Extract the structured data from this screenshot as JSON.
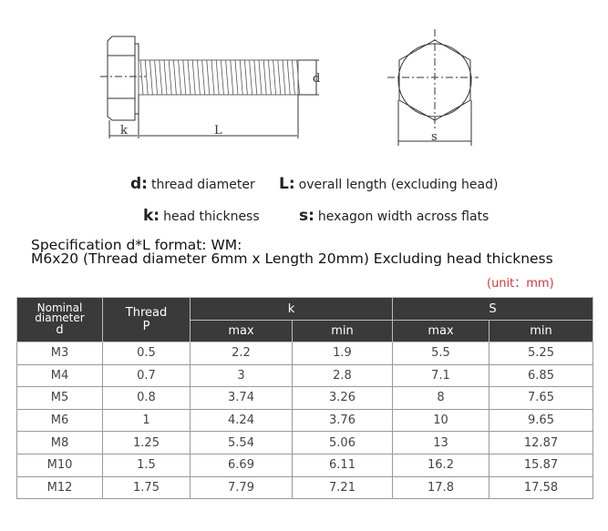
{
  "diagram": {
    "labels": {
      "k": "k",
      "L": "L",
      "d": "d",
      "s": "s"
    }
  },
  "legend": [
    {
      "symbol": "d:",
      "text": "thread diameter"
    },
    {
      "symbol": "L:",
      "text": "overall length (excluding head)"
    },
    {
      "symbol": "k:",
      "text": "head thickness"
    },
    {
      "symbol": "s:",
      "text": "hexagon width across flats"
    }
  ],
  "spec": {
    "line1": "Specification d*L format: WM:",
    "line2": "M6x20 (Thread diameter 6mm x Length 20mm) Excluding head thickness",
    "unit": "(unit：mm)"
  },
  "colors": {
    "header_bg": "#3a3a3a",
    "unit_text": "#d9333a"
  },
  "table": {
    "headers": {
      "nominal": [
        "Nominal",
        "diameter",
        "d"
      ],
      "thread": [
        "Thread",
        "P"
      ],
      "k": "k",
      "s": "S",
      "k_sub": [
        "max",
        "min"
      ],
      "s_sub": [
        "max",
        "min"
      ]
    },
    "rows": [
      [
        "M3",
        "0.5",
        "2.2",
        "1.9",
        "5.5",
        "5.25"
      ],
      [
        "M4",
        "0.7",
        "3",
        "2.8",
        "7.1",
        "6.85"
      ],
      [
        "M5",
        "0.8",
        "3.74",
        "3.26",
        "8",
        "7.65"
      ],
      [
        "M6",
        "1",
        "4.24",
        "3.76",
        "10",
        "9.65"
      ],
      [
        "M8",
        "1.25",
        "5.54",
        "5.06",
        "13",
        "12.87"
      ],
      [
        "M10",
        "1.5",
        "6.69",
        "6.11",
        "16.2",
        "15.87"
      ],
      [
        "M12",
        "1.75",
        "7.79",
        "7.21",
        "17.8",
        "17.58"
      ]
    ]
  }
}
